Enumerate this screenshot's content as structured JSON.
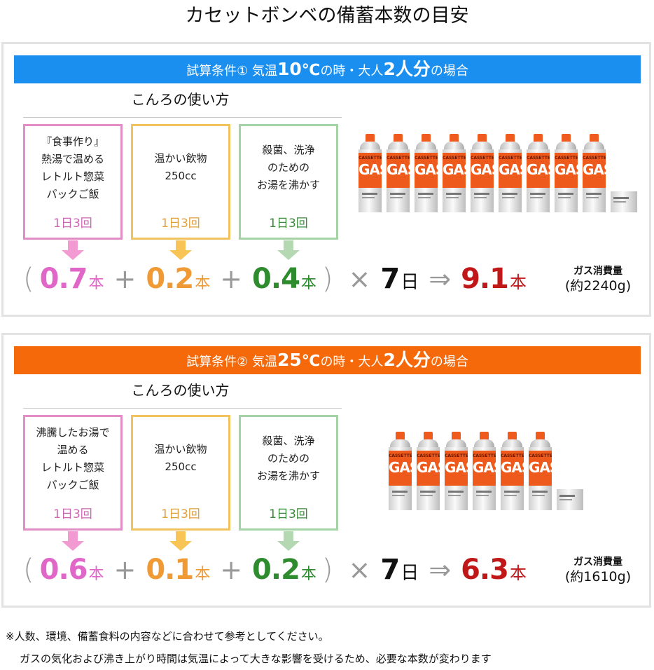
{
  "page_title": "カセットボンベの備蓄本数の目安",
  "scenarios": [
    {
      "banner": {
        "prefix": "試算条件① 気温",
        "temp": "10",
        "deg": "℃",
        "mid": "の時・大人",
        "people": "2人分",
        "suffix": "の場合",
        "color": "#1a8ff0"
      },
      "usage_title": "こんろの使い方",
      "usages": [
        {
          "desc": "『食事作り』\n熱湯で温める\nレトルト惣菜\nパックご飯",
          "freq": "1日3回",
          "color": "#e28cc8"
        },
        {
          "desc": "温かい飲物\n250cc",
          "freq": "1日3回",
          "color": "#f2c25f"
        },
        {
          "desc": "殺菌、洗浄\nのための\nお湯を沸かす",
          "freq": "1日3回",
          "color": "#a6d3a5"
        }
      ],
      "formula": {
        "open_paren": "(",
        "close_paren": ")",
        "plus": "+",
        "times": "×",
        "implies": "⇒",
        "term1": "0.7",
        "term2": "0.2",
        "term3": "0.4",
        "unit": "本",
        "days": "7",
        "days_unit": "日",
        "result": "9.1",
        "result_unit": "本"
      },
      "gas_usage": {
        "label": "ガス消費量",
        "amount": "(約2240g)"
      },
      "cans": {
        "full": 9,
        "partial": true,
        "can_label_small": "CASSETTE",
        "can_label_big": "GAS"
      }
    },
    {
      "banner": {
        "prefix": "試算条件② 気温",
        "temp": "25",
        "deg": "℃",
        "mid": "の時・大人",
        "people": "2人分",
        "suffix": "の場合",
        "color": "#f5690a"
      },
      "usage_title": "こんろの使い方",
      "usages": [
        {
          "desc": "沸騰したお湯で\n温める\nレトルト惣菜\nパックご飯",
          "freq": "1日3回",
          "color": "#e28cc8"
        },
        {
          "desc": "温かい飲物\n250cc",
          "freq": "1日3回",
          "color": "#f2c25f"
        },
        {
          "desc": "殺菌、洗浄\nのための\nお湯を沸かす",
          "freq": "1日3回",
          "color": "#a6d3a5"
        }
      ],
      "formula": {
        "open_paren": "(",
        "close_paren": ")",
        "plus": "+",
        "times": "×",
        "implies": "⇒",
        "term1": "0.6",
        "term2": "0.1",
        "term3": "0.2",
        "unit": "本",
        "days": "7",
        "days_unit": "日",
        "result": "6.3",
        "result_unit": "本"
      },
      "gas_usage": {
        "label": "ガス消費量",
        "amount": "(約1610g)"
      },
      "cans": {
        "full": 6,
        "partial": true,
        "can_label_small": "CASSETTE",
        "can_label_big": "GAS"
      }
    }
  ],
  "footnotes": [
    "※人数、環境、備蓄食料の内容などに合わせて参考としてください。",
    "ガスの気化および沸き上がり時間は気温によって大きな影響を受けるため、必要な本数が変わります"
  ]
}
